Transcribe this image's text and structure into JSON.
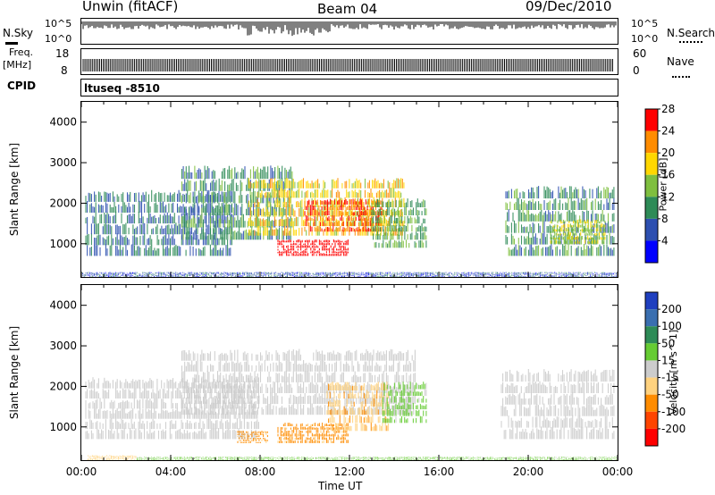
{
  "header": {
    "title": "Unwin (fitACF)",
    "beam": "Beam 04",
    "date": "09/Dec/2010"
  },
  "strip_nsky": {
    "label": "N.Sky",
    "tick_top": "10^5",
    "tick_bottom": "10^0",
    "right_tick_top": "10^5",
    "right_tick_bottom": "10^0",
    "right_label": "N.Search"
  },
  "strip_freq": {
    "label_line1": "Freq.",
    "label_line2": "[MHz]",
    "tick_top": "18",
    "tick_bottom": "8",
    "right_tick_top": "60",
    "right_tick_bottom": "0",
    "right_label": "Nave"
  },
  "cpid": {
    "label": "CPID",
    "value": "ltuseq -8510"
  },
  "chart_data": [
    {
      "type": "heatmap",
      "panel": "power",
      "ylabel": "Slant Range [km]",
      "xlabel": "",
      "ylim": [
        180,
        4500
      ],
      "yticks": [
        "1000",
        "2000",
        "3000",
        "4000"
      ],
      "xticks": [
        "00:00",
        "04:00",
        "08:00",
        "12:00",
        "16:00",
        "20:00",
        "00:00"
      ],
      "colorbar": {
        "label": "Power [dB]",
        "ticks": [
          "4",
          "8",
          "12",
          "16",
          "20",
          "24",
          "28"
        ],
        "colors": [
          "#0000ff",
          "#2d4fb0",
          "#2e8b57",
          "#7fbf3f",
          "#ffd700",
          "#ff8c00",
          "#ff0000"
        ]
      },
      "regions": [
        {
          "t0": 0.2,
          "t1": 6.8,
          "r0": 700,
          "r1": 2300,
          "level": 8
        },
        {
          "t0": 4.5,
          "t1": 9.5,
          "r0": 1100,
          "r1": 2900,
          "level": 10
        },
        {
          "t0": 7.5,
          "t1": 14.5,
          "r0": 1200,
          "r1": 2600,
          "level": 18
        },
        {
          "t0": 10.0,
          "t1": 13.5,
          "r0": 1300,
          "r1": 2100,
          "level": 24
        },
        {
          "t0": 8.8,
          "t1": 12.0,
          "r0": 700,
          "r1": 1100,
          "level": 28
        },
        {
          "t0": 13.0,
          "t1": 15.5,
          "r0": 900,
          "r1": 2100,
          "level": 12
        },
        {
          "t0": 19.0,
          "t1": 23.9,
          "r0": 700,
          "r1": 2400,
          "level": 10
        },
        {
          "t0": 21.0,
          "t1": 23.5,
          "r0": 1000,
          "r1": 1600,
          "level": 16
        },
        {
          "t0": 0.0,
          "t1": 24.0,
          "r0": 180,
          "r1": 300,
          "level": 6
        }
      ]
    },
    {
      "type": "heatmap",
      "panel": "velocity",
      "ylabel": "Slant Range [km]",
      "xlabel": "Time UT",
      "ylim": [
        180,
        4500
      ],
      "yticks": [
        "1000",
        "2000",
        "3000",
        "4000"
      ],
      "xticks": [
        "00:00",
        "04:00",
        "08:00",
        "12:00",
        "16:00",
        "20:00",
        "00:00"
      ],
      "colorbar": {
        "label": "Velocity [m s^-1]",
        "ticks": [
          "200",
          "100",
          "50",
          "15",
          "-15",
          "-50",
          "-100",
          "-200"
        ],
        "colors": [
          "#1f3fbf",
          "#3a6fb0",
          "#2e8b57",
          "#66cc33",
          "#cccccc",
          "#ffd27f",
          "#ff8c00",
          "#ff4500",
          "#ff0000"
        ]
      },
      "regions": [
        {
          "t0": 0.2,
          "t1": 8.0,
          "r0": 700,
          "r1": 2200,
          "level": 0
        },
        {
          "t0": 4.5,
          "t1": 15.0,
          "r0": 1300,
          "r1": 2900,
          "level": 0
        },
        {
          "t0": 8.8,
          "t1": 12.0,
          "r0": 600,
          "r1": 1100,
          "level": -60
        },
        {
          "t0": 11.0,
          "t1": 13.8,
          "r0": 900,
          "r1": 2100,
          "level": -40
        },
        {
          "t0": 13.5,
          "t1": 15.5,
          "r0": 1100,
          "r1": 2100,
          "level": 25
        },
        {
          "t0": 7.0,
          "t1": 8.4,
          "r0": 600,
          "r1": 900,
          "level": -60
        },
        {
          "t0": 18.8,
          "t1": 23.9,
          "r0": 700,
          "r1": 2400,
          "level": 0
        },
        {
          "t0": 0.3,
          "t1": 2.5,
          "r0": 180,
          "r1": 300,
          "level": -30
        },
        {
          "t0": 2.5,
          "t1": 24.0,
          "r0": 180,
          "r1": 260,
          "level": 25
        }
      ]
    }
  ]
}
